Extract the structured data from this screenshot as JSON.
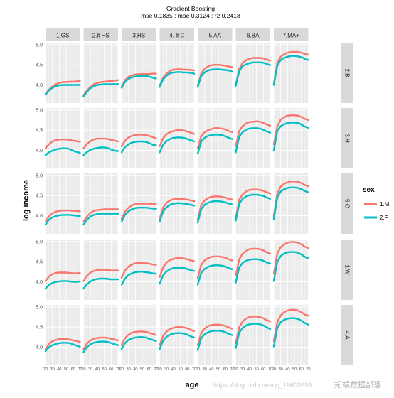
{
  "chart_data": {
    "type": "line",
    "title": "Gradient Boosting",
    "subtitle": "mse 0.1835 ; mae 0.3124 ; r2 0.2418",
    "xlabel": "age",
    "ylabel": "log income",
    "xlim": [
      20,
      70
    ],
    "ylim": [
      3.55,
      5.05
    ],
    "x_ticks": [
      20,
      30,
      40,
      50,
      60,
      70
    ],
    "x_tick_labels": [
      "20",
      "30",
      "40",
      "50",
      "60",
      "70"
    ],
    "y_ticks": [
      4.0,
      4.5,
      5.0
    ],
    "y_tick_labels": [
      "4.0",
      "4.5",
      "5.0"
    ],
    "grid": true,
    "columns": [
      "1.GS",
      "2.lt HS",
      "3.HS",
      "4. lt C",
      "5.AA",
      "6.BA",
      "7.MA+"
    ],
    "rows": [
      "2.B",
      "3.H",
      "5.O",
      "1.W",
      "4.A"
    ],
    "legend": {
      "title": "sex",
      "position": "right",
      "entries": [
        {
          "label": "1.M",
          "color": "#f8766d"
        },
        {
          "label": "2.F",
          "color": "#00bfc4"
        }
      ]
    },
    "x": [
      20,
      25,
      30,
      35,
      40,
      45,
      50,
      55,
      60,
      65,
      70
    ],
    "panels": [
      [
        {
          "M": [
            3.78,
            3.88,
            3.96,
            4.02,
            4.05,
            4.07,
            4.07,
            4.08,
            4.08,
            4.09,
            4.1
          ],
          "F": [
            3.76,
            3.86,
            3.93,
            3.97,
            3.99,
            4.0,
            4.0,
            4.0,
            4.0,
            4.0,
            4.0
          ]
        },
        {
          "M": [
            3.75,
            3.86,
            3.95,
            4.02,
            4.05,
            4.07,
            4.08,
            4.09,
            4.1,
            4.11,
            4.12
          ],
          "F": [
            3.72,
            3.83,
            3.92,
            3.97,
            4.0,
            4.01,
            4.02,
            4.02,
            4.02,
            4.02,
            4.02
          ]
        },
        {
          "M": [
            3.95,
            4.12,
            4.2,
            4.24,
            4.26,
            4.27,
            4.27,
            4.27,
            4.27,
            4.28,
            4.28
          ],
          "F": [
            3.93,
            4.08,
            4.15,
            4.19,
            4.21,
            4.22,
            4.22,
            4.22,
            4.21,
            4.18,
            4.16
          ]
        },
        {
          "M": [
            3.98,
            4.18,
            4.28,
            4.35,
            4.38,
            4.39,
            4.39,
            4.38,
            4.38,
            4.37,
            4.36
          ],
          "F": [
            3.95,
            4.14,
            4.23,
            4.29,
            4.31,
            4.32,
            4.32,
            4.31,
            4.31,
            4.3,
            4.28
          ]
        },
        {
          "M": [
            3.98,
            4.28,
            4.4,
            4.46,
            4.49,
            4.5,
            4.5,
            4.49,
            4.48,
            4.46,
            4.44
          ],
          "F": [
            3.95,
            4.22,
            4.31,
            4.36,
            4.38,
            4.39,
            4.39,
            4.38,
            4.37,
            4.36,
            4.33
          ]
        },
        {
          "M": [
            4.0,
            4.4,
            4.55,
            4.61,
            4.65,
            4.67,
            4.67,
            4.67,
            4.66,
            4.63,
            4.6
          ],
          "F": [
            3.98,
            4.34,
            4.47,
            4.51,
            4.54,
            4.56,
            4.56,
            4.56,
            4.55,
            4.52,
            4.49
          ]
        },
        {
          "M": [
            4.02,
            4.55,
            4.7,
            4.76,
            4.8,
            4.82,
            4.82,
            4.82,
            4.8,
            4.77,
            4.75
          ],
          "F": [
            4.0,
            4.48,
            4.62,
            4.67,
            4.7,
            4.72,
            4.72,
            4.71,
            4.69,
            4.65,
            4.62
          ]
        }
      ],
      [
        {
          "M": [
            4.05,
            4.15,
            4.22,
            4.25,
            4.27,
            4.27,
            4.27,
            4.26,
            4.24,
            4.23,
            4.21
          ],
          "F": [
            3.88,
            3.95,
            3.99,
            4.02,
            4.04,
            4.05,
            4.05,
            4.03,
            3.99,
            3.96,
            3.94
          ]
        },
        {
          "M": [
            4.05,
            4.16,
            4.23,
            4.27,
            4.29,
            4.29,
            4.29,
            4.28,
            4.26,
            4.24,
            4.22
          ],
          "F": [
            3.88,
            3.96,
            4.01,
            4.04,
            4.06,
            4.07,
            4.07,
            4.06,
            4.02,
            3.99,
            3.98
          ]
        },
        {
          "M": [
            4.1,
            4.24,
            4.32,
            4.36,
            4.38,
            4.39,
            4.39,
            4.38,
            4.36,
            4.33,
            4.3
          ],
          "F": [
            3.95,
            4.08,
            4.15,
            4.19,
            4.21,
            4.22,
            4.22,
            4.21,
            4.18,
            4.14,
            4.12
          ]
        },
        {
          "M": [
            4.1,
            4.3,
            4.4,
            4.45,
            4.48,
            4.5,
            4.5,
            4.49,
            4.47,
            4.44,
            4.41
          ],
          "F": [
            3.95,
            4.14,
            4.23,
            4.28,
            4.31,
            4.32,
            4.32,
            4.31,
            4.28,
            4.25,
            4.22
          ]
        },
        {
          "M": [
            4.05,
            4.35,
            4.45,
            4.5,
            4.53,
            4.55,
            4.55,
            4.54,
            4.52,
            4.48,
            4.45
          ],
          "F": [
            3.92,
            4.22,
            4.31,
            4.36,
            4.38,
            4.39,
            4.39,
            4.38,
            4.35,
            4.31,
            4.28
          ]
        },
        {
          "M": [
            4.1,
            4.48,
            4.6,
            4.67,
            4.7,
            4.71,
            4.72,
            4.71,
            4.68,
            4.64,
            4.61
          ],
          "F": [
            3.95,
            4.34,
            4.45,
            4.51,
            4.54,
            4.55,
            4.55,
            4.54,
            4.51,
            4.47,
            4.44
          ]
        },
        {
          "M": [
            4.15,
            4.6,
            4.76,
            4.82,
            4.86,
            4.87,
            4.87,
            4.86,
            4.83,
            4.78,
            4.75
          ],
          "F": [
            4.0,
            4.48,
            4.6,
            4.65,
            4.68,
            4.69,
            4.69,
            4.68,
            4.64,
            4.59,
            4.56
          ]
        }
      ],
      [
        {
          "M": [
            3.85,
            3.98,
            4.06,
            4.1,
            4.12,
            4.13,
            4.13,
            4.13,
            4.12,
            4.12,
            4.11
          ],
          "F": [
            3.78,
            3.9,
            3.96,
            3.99,
            4.01,
            4.02,
            4.02,
            4.02,
            4.01,
            4.0,
            3.99
          ]
        },
        {
          "M": [
            3.85,
            3.98,
            4.07,
            4.12,
            4.14,
            4.15,
            4.16,
            4.16,
            4.16,
            4.16,
            4.16
          ],
          "F": [
            3.78,
            3.9,
            3.98,
            4.02,
            4.04,
            4.05,
            4.05,
            4.05,
            4.05,
            4.05,
            4.05
          ]
        },
        {
          "M": [
            3.92,
            4.1,
            4.2,
            4.26,
            4.29,
            4.3,
            4.3,
            4.3,
            4.3,
            4.29,
            4.28
          ],
          "F": [
            3.85,
            4.02,
            4.11,
            4.16,
            4.19,
            4.2,
            4.2,
            4.2,
            4.19,
            4.18,
            4.17
          ]
        },
        {
          "M": [
            3.92,
            4.2,
            4.32,
            4.38,
            4.41,
            4.42,
            4.42,
            4.41,
            4.4,
            4.38,
            4.36
          ],
          "F": [
            3.85,
            4.1,
            4.21,
            4.27,
            4.3,
            4.31,
            4.31,
            4.3,
            4.29,
            4.27,
            4.25
          ]
        },
        {
          "M": [
            3.9,
            4.26,
            4.38,
            4.44,
            4.47,
            4.48,
            4.48,
            4.47,
            4.45,
            4.42,
            4.4
          ],
          "F": [
            3.83,
            4.16,
            4.27,
            4.32,
            4.35,
            4.36,
            4.36,
            4.35,
            4.33,
            4.3,
            4.28
          ]
        },
        {
          "M": [
            3.95,
            4.4,
            4.53,
            4.6,
            4.64,
            4.65,
            4.65,
            4.64,
            4.62,
            4.58,
            4.55
          ],
          "F": [
            3.88,
            4.3,
            4.42,
            4.48,
            4.51,
            4.52,
            4.52,
            4.51,
            4.49,
            4.45,
            4.42
          ]
        },
        {
          "M": [
            4.0,
            4.55,
            4.72,
            4.79,
            4.83,
            4.85,
            4.85,
            4.84,
            4.81,
            4.76,
            4.73
          ],
          "F": [
            3.92,
            4.45,
            4.6,
            4.66,
            4.69,
            4.7,
            4.7,
            4.69,
            4.66,
            4.61,
            4.58
          ]
        }
      ],
      [
        {
          "M": [
            4.02,
            4.13,
            4.19,
            4.22,
            4.23,
            4.23,
            4.23,
            4.22,
            4.21,
            4.21,
            4.22
          ],
          "F": [
            3.83,
            3.92,
            3.97,
            4.0,
            4.01,
            4.02,
            4.02,
            4.01,
            4.0,
            4.0,
            4.01
          ]
        },
        {
          "M": [
            4.02,
            4.15,
            4.23,
            4.27,
            4.29,
            4.3,
            4.3,
            4.29,
            4.28,
            4.28,
            4.28
          ],
          "F": [
            3.83,
            3.94,
            4.01,
            4.05,
            4.07,
            4.08,
            4.08,
            4.07,
            4.06,
            4.06,
            4.06
          ]
        },
        {
          "M": [
            4.1,
            4.28,
            4.38,
            4.43,
            4.46,
            4.47,
            4.47,
            4.46,
            4.45,
            4.43,
            4.42
          ],
          "F": [
            3.93,
            4.08,
            4.17,
            4.21,
            4.24,
            4.25,
            4.25,
            4.24,
            4.23,
            4.21,
            4.2
          ]
        },
        {
          "M": [
            4.12,
            4.36,
            4.48,
            4.54,
            4.57,
            4.59,
            4.59,
            4.58,
            4.56,
            4.53,
            4.51
          ],
          "F": [
            3.95,
            4.16,
            4.26,
            4.31,
            4.34,
            4.35,
            4.35,
            4.34,
            4.32,
            4.29,
            4.27
          ]
        },
        {
          "M": [
            4.1,
            4.42,
            4.53,
            4.59,
            4.62,
            4.63,
            4.63,
            4.62,
            4.6,
            4.56,
            4.53
          ],
          "F": [
            3.93,
            4.22,
            4.32,
            4.37,
            4.4,
            4.41,
            4.41,
            4.4,
            4.38,
            4.34,
            4.31
          ]
        },
        {
          "M": [
            4.15,
            4.56,
            4.7,
            4.77,
            4.81,
            4.82,
            4.82,
            4.81,
            4.78,
            4.73,
            4.7
          ],
          "F": [
            3.98,
            4.36,
            4.47,
            4.52,
            4.55,
            4.56,
            4.56,
            4.55,
            4.52,
            4.48,
            4.45
          ]
        },
        {
          "M": [
            4.2,
            4.7,
            4.86,
            4.93,
            4.97,
            4.99,
            4.99,
            4.97,
            4.93,
            4.87,
            4.84
          ],
          "F": [
            4.02,
            4.5,
            4.64,
            4.7,
            4.73,
            4.74,
            4.74,
            4.72,
            4.68,
            4.62,
            4.58
          ]
        }
      ],
      [
        {
          "M": [
            3.95,
            4.08,
            4.15,
            4.18,
            4.2,
            4.2,
            4.2,
            4.19,
            4.17,
            4.15,
            4.13
          ],
          "F": [
            3.9,
            4.0,
            4.05,
            4.08,
            4.1,
            4.11,
            4.11,
            4.1,
            4.07,
            4.04,
            4.01
          ]
        },
        {
          "M": [
            3.95,
            4.09,
            4.17,
            4.21,
            4.23,
            4.24,
            4.24,
            4.23,
            4.21,
            4.19,
            4.17
          ],
          "F": [
            3.88,
            4.0,
            4.07,
            4.11,
            4.13,
            4.14,
            4.14,
            4.13,
            4.1,
            4.07,
            4.05
          ]
        },
        {
          "M": [
            4.05,
            4.22,
            4.31,
            4.36,
            4.38,
            4.39,
            4.39,
            4.38,
            4.36,
            4.33,
            4.3
          ],
          "F": [
            3.95,
            4.1,
            4.18,
            4.22,
            4.24,
            4.25,
            4.25,
            4.24,
            4.21,
            4.18,
            4.15
          ]
        },
        {
          "M": [
            4.05,
            4.28,
            4.39,
            4.45,
            4.48,
            4.5,
            4.5,
            4.49,
            4.47,
            4.43,
            4.4
          ],
          "F": [
            3.95,
            4.16,
            4.26,
            4.31,
            4.34,
            4.35,
            4.35,
            4.34,
            4.31,
            4.27,
            4.24
          ]
        },
        {
          "M": [
            4.05,
            4.35,
            4.46,
            4.52,
            4.55,
            4.56,
            4.56,
            4.55,
            4.53,
            4.49,
            4.46
          ],
          "F": [
            3.93,
            4.22,
            4.32,
            4.37,
            4.4,
            4.41,
            4.41,
            4.4,
            4.37,
            4.33,
            4.3
          ]
        },
        {
          "M": [
            4.1,
            4.5,
            4.64,
            4.71,
            4.75,
            4.76,
            4.76,
            4.75,
            4.72,
            4.67,
            4.64
          ],
          "F": [
            3.98,
            4.36,
            4.48,
            4.54,
            4.57,
            4.58,
            4.58,
            4.57,
            4.54,
            4.49,
            4.45
          ]
        },
        {
          "M": [
            4.15,
            4.62,
            4.79,
            4.87,
            4.91,
            4.93,
            4.93,
            4.91,
            4.87,
            4.81,
            4.78
          ],
          "F": [
            4.02,
            4.48,
            4.62,
            4.68,
            4.71,
            4.72,
            4.72,
            4.7,
            4.66,
            4.6,
            4.56
          ]
        }
      ]
    ]
  },
  "watermark": {
    "text": "https://blog.csdn.net/qq_19600299",
    "brand": "拓端数据部落"
  }
}
